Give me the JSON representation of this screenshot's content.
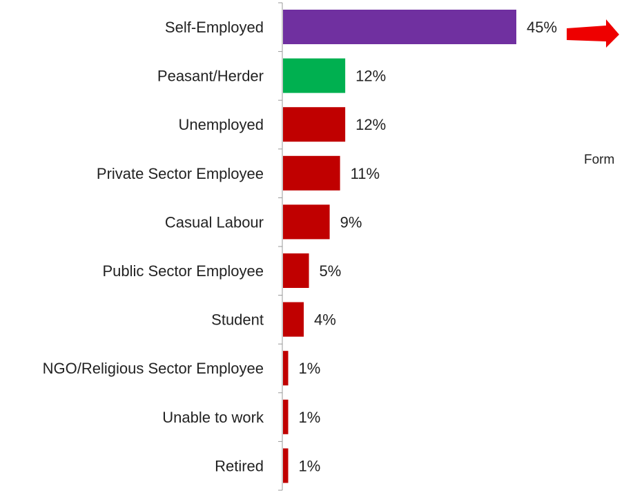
{
  "chart_data": {
    "type": "bar",
    "orientation": "horizontal",
    "categories": [
      "Self-Employed",
      "Peasant/Herder",
      "Unemployed",
      "Private Sector Employee",
      "Casual Labour",
      "Public Sector Employee",
      "Student",
      "NGO/Religious Sector Employee",
      "Unable to work",
      "Retired"
    ],
    "values": [
      45,
      12,
      12,
      11,
      9,
      5,
      4,
      1,
      1,
      1
    ],
    "value_labels": [
      "45%",
      "12%",
      "12%",
      "11%",
      "9%",
      "5%",
      "4%",
      "1%",
      "1%",
      "1%"
    ],
    "bar_colors": [
      "#7030a0",
      "#00b050",
      "#c00000",
      "#c00000",
      "#c00000",
      "#c00000",
      "#c00000",
      "#c00000",
      "#c00000",
      "#c00000"
    ],
    "unit": "%",
    "xlim": [
      0,
      50
    ],
    "grid": false,
    "title": "",
    "xlabel": "",
    "ylabel": ""
  },
  "annotation": {
    "arrow_color": "#ee0000",
    "arrow_icon": "right-arrow-icon",
    "side_text": "Form"
  }
}
